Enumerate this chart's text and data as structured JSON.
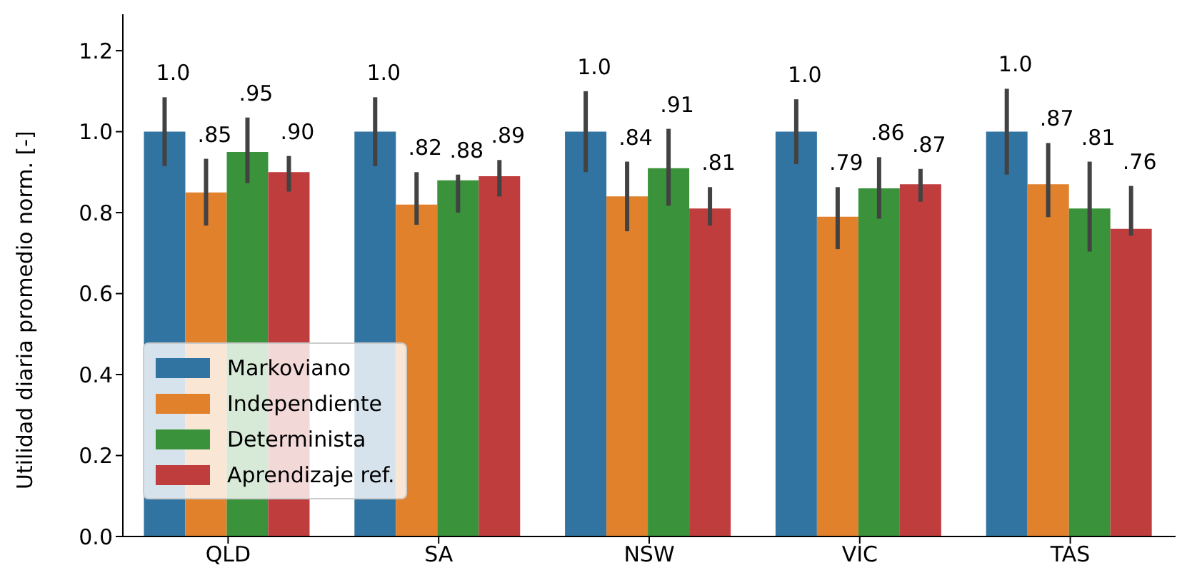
{
  "chart_data": {
    "type": "bar",
    "ylabel": "Utilidad diaria promedio norm. [-]",
    "categories": [
      "QLD",
      "SA",
      "NSW",
      "VIC",
      "TAS"
    ],
    "series": [
      {
        "name": "Markoviano",
        "color": "#3274a1",
        "values": [
          1.0,
          1.0,
          1.0,
          1.0,
          1.0
        ],
        "value_labels": [
          "1.0",
          "1.0",
          "1.0",
          "1.0",
          "1.0"
        ],
        "errors": [
          [
            0.915,
            1.085
          ],
          [
            0.915,
            1.085
          ],
          [
            0.9,
            1.1
          ],
          [
            0.92,
            1.08
          ],
          [
            0.894,
            1.106
          ]
        ]
      },
      {
        "name": "Independiente",
        "color": "#e1812c",
        "values": [
          0.85,
          0.82,
          0.84,
          0.79,
          0.87
        ],
        "value_labels": [
          ".85",
          ".82",
          ".84",
          ".79",
          ".87"
        ],
        "errors": [
          [
            0.768,
            0.933
          ],
          [
            0.77,
            0.9
          ],
          [
            0.754,
            0.926
          ],
          [
            0.71,
            0.863
          ],
          [
            0.789,
            0.972
          ]
        ]
      },
      {
        "name": "Determinista",
        "color": "#3a923a",
        "values": [
          0.95,
          0.88,
          0.91,
          0.86,
          0.81
        ],
        "value_labels": [
          ".95",
          ".88",
          ".91",
          ".86",
          ".81"
        ],
        "errors": [
          [
            0.873,
            1.035
          ],
          [
            0.8,
            0.894
          ],
          [
            0.817,
            1.007
          ],
          [
            0.785,
            0.937
          ],
          [
            0.704,
            0.926
          ]
        ]
      },
      {
        "name": "Aprendizaje ref.",
        "color": "#c03d3e",
        "values": [
          0.9,
          0.89,
          0.81,
          0.87,
          0.76
        ],
        "value_labels": [
          ".90",
          ".89",
          ".81",
          ".87",
          ".76"
        ],
        "errors": [
          [
            0.852,
            0.94
          ],
          [
            0.84,
            0.93
          ],
          [
            0.768,
            0.863
          ],
          [
            0.827,
            0.908
          ],
          [
            0.743,
            0.866
          ]
        ]
      }
    ],
    "ylim": [
      0,
      1.29
    ],
    "yticks": [
      {
        "value": 0,
        "label": "0.0"
      },
      {
        "value": 0.2,
        "label": "0.2"
      },
      {
        "value": 0.4,
        "label": "0.4"
      },
      {
        "value": 0.6,
        "label": "0.6"
      },
      {
        "value": 0.8,
        "label": "0.8"
      },
      {
        "value": 1.0,
        "label": "1.0"
      },
      {
        "value": 1.2,
        "label": "1.2"
      }
    ],
    "legend": "bottom left"
  }
}
